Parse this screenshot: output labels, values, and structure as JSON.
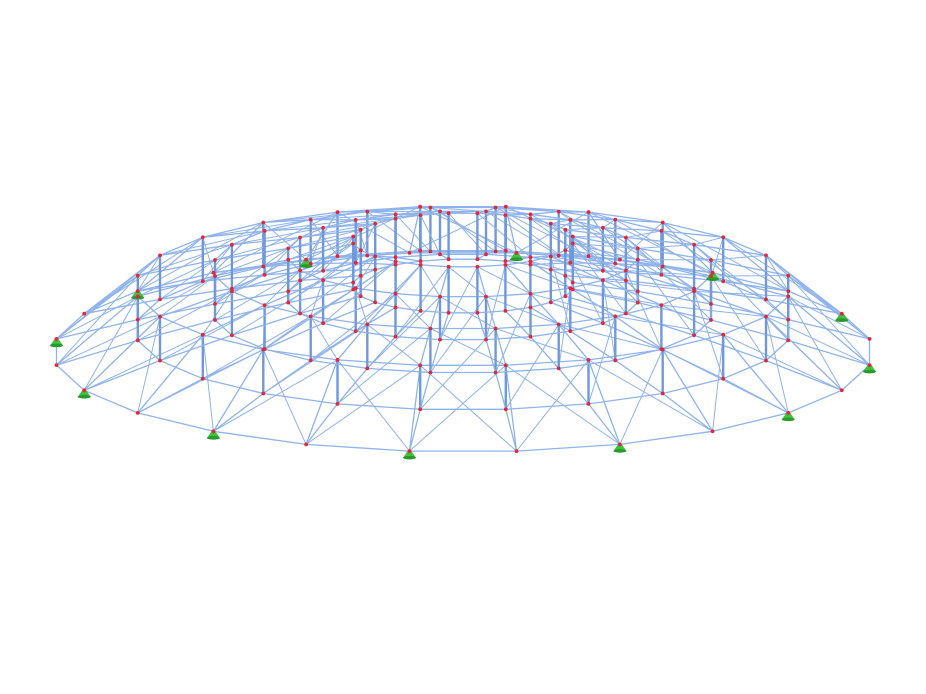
{
  "model": {
    "member_color": "#8fb3ec",
    "member_dark_color": "#6f98dd",
    "node_color": "#e3263a",
    "support_color": "#3cc43c",
    "support_dark_color": "#2a9a2a",
    "background": "#ffffff",
    "icons": {
      "node": "node-point-icon",
      "support": "hinged-support-icon"
    }
  }
}
